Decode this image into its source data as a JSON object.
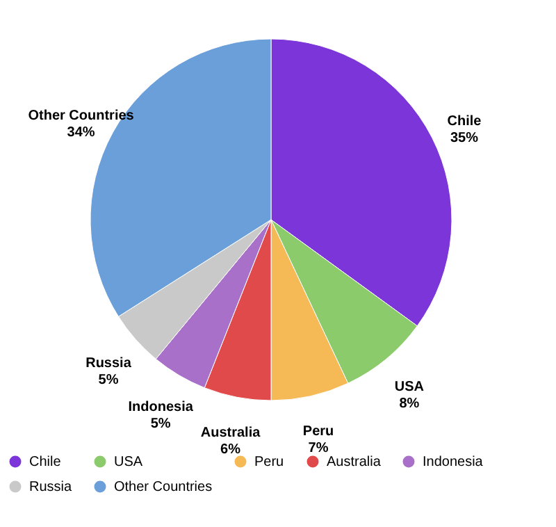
{
  "chart_data": {
    "type": "pie",
    "categories": [
      "Chile",
      "USA",
      "Peru",
      "Australia",
      "Indonesia",
      "Russia",
      "Other Countries"
    ],
    "values": [
      35,
      8,
      7,
      6,
      5,
      5,
      34
    ],
    "value_labels": [
      "35%",
      "8%",
      "7%",
      "6%",
      "5%",
      "5%",
      "34%"
    ],
    "colors": [
      "#7b35d8",
      "#8ccb6c",
      "#f5b955",
      "#e04a4a",
      "#a870c8",
      "#c9c9c9",
      "#6b9fd9"
    ],
    "legend": "bottom"
  }
}
